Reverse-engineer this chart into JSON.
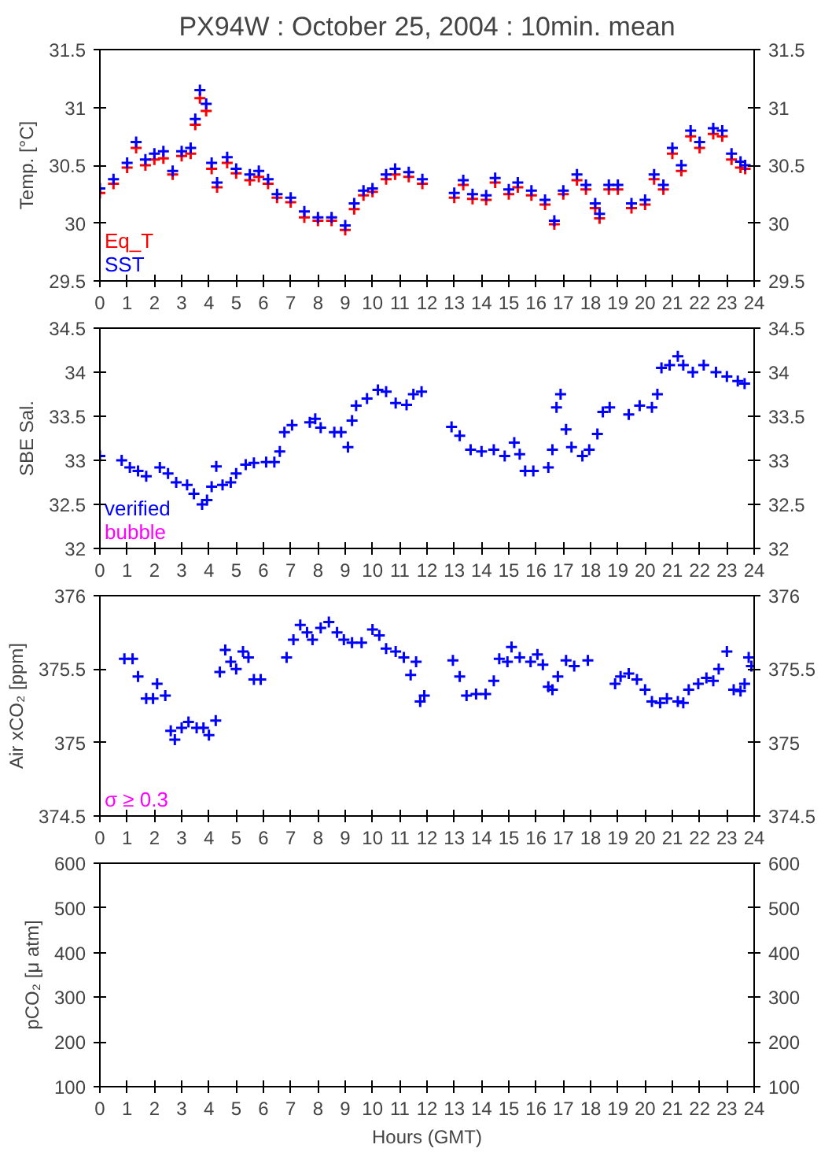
{
  "chart_data": [
    {
      "type": "scatter",
      "title": "PX94W : October 25, 2004 : 10min. mean",
      "ylabel": "Temp. [°C]",
      "marker": "cross",
      "grid": false,
      "y2lim": [
        29.5,
        31.5
      ],
      "y2ticks": [
        29.5,
        30,
        30.5,
        31,
        31.5
      ],
      "xlim": [
        0,
        24
      ],
      "xticks": [
        0,
        1,
        2,
        3,
        4,
        5,
        6,
        7,
        8,
        9,
        10,
        11,
        12,
        13,
        14,
        15,
        16,
        17,
        18,
        19,
        20,
        21,
        22,
        23,
        24
      ],
      "ylim": [
        29.5,
        31.5
      ],
      "yticks": [
        29.5,
        30,
        30.5,
        31,
        31.5
      ],
      "series": [
        {
          "name": "Eq_T",
          "color": "#ff0000",
          "x": [
            0,
            0.5,
            1,
            1.33,
            1.67,
            2,
            2.33,
            2.67,
            3,
            3.33,
            3.5,
            3.67,
            3.9,
            4.1,
            4.3,
            4.67,
            5,
            5.5,
            5.83,
            6.17,
            6.5,
            7,
            7.5,
            8,
            8.5,
            9,
            9.33,
            9.67,
            10,
            10.5,
            10.83,
            11.33,
            11.83,
            13,
            13.33,
            13.67,
            14.17,
            14.5,
            15,
            15.33,
            15.83,
            16.33,
            16.67,
            17,
            17.5,
            17.83,
            18.17,
            18.33,
            18.67,
            19,
            19.5,
            20,
            20.33,
            20.67,
            21,
            21.33,
            21.67,
            22,
            22.5,
            22.83,
            23.17,
            23.5,
            23.67
          ],
          "values": [
            30.26,
            30.34,
            30.48,
            30.65,
            30.5,
            30.55,
            30.56,
            30.42,
            30.58,
            30.6,
            30.85,
            31.08,
            30.97,
            30.47,
            30.31,
            30.52,
            30.43,
            30.37,
            30.4,
            30.34,
            30.22,
            30.18,
            30.05,
            30.02,
            30.02,
            29.94,
            30.12,
            30.24,
            30.27,
            30.38,
            30.42,
            30.4,
            30.34,
            30.22,
            30.33,
            30.21,
            30.2,
            30.35,
            30.25,
            30.31,
            30.24,
            30.16,
            29.99,
            30.25,
            30.37,
            30.29,
            30.13,
            30.04,
            30.29,
            30.29,
            30.13,
            30.16,
            30.38,
            30.29,
            30.6,
            30.45,
            30.75,
            30.65,
            30.77,
            30.75,
            30.55,
            30.48,
            30.47
          ]
        },
        {
          "name": "SST",
          "color": "#0000ff",
          "x": [
            0,
            0.5,
            1,
            1.33,
            1.67,
            2,
            2.33,
            2.67,
            3,
            3.33,
            3.5,
            3.67,
            3.9,
            4.1,
            4.3,
            4.67,
            5,
            5.5,
            5.83,
            6.17,
            6.5,
            7,
            7.5,
            8,
            8.5,
            9,
            9.33,
            9.67,
            10,
            10.5,
            10.83,
            11.33,
            11.83,
            13,
            13.33,
            13.67,
            14.17,
            14.5,
            15,
            15.33,
            15.83,
            16.33,
            16.67,
            17,
            17.5,
            17.83,
            18.17,
            18.33,
            18.67,
            19,
            19.5,
            20,
            20.33,
            20.67,
            21,
            21.33,
            21.67,
            22,
            22.5,
            22.83,
            23.17,
            23.5,
            23.67
          ],
          "values": [
            30.3,
            30.38,
            30.52,
            30.7,
            30.55,
            30.6,
            30.62,
            30.45,
            30.62,
            30.65,
            30.9,
            31.15,
            31.03,
            30.52,
            30.35,
            30.57,
            30.47,
            30.42,
            30.45,
            30.38,
            30.25,
            30.22,
            30.1,
            30.05,
            30.05,
            29.98,
            30.17,
            30.28,
            30.3,
            30.42,
            30.47,
            30.44,
            30.38,
            30.26,
            30.37,
            30.25,
            30.24,
            30.39,
            30.29,
            30.35,
            30.28,
            30.2,
            30.02,
            30.28,
            30.42,
            30.33,
            30.17,
            30.08,
            30.33,
            30.33,
            30.17,
            30.2,
            30.42,
            30.33,
            30.65,
            30.5,
            30.8,
            30.7,
            30.82,
            30.8,
            30.6,
            30.53,
            30.5
          ]
        }
      ]
    },
    {
      "type": "scatter",
      "ylabel": "SBE Sal.",
      "marker": "cross",
      "grid": false,
      "y2lim": [
        32,
        34.5
      ],
      "y2ticks": [
        32,
        32.5,
        33,
        33.5,
        34,
        34.5
      ],
      "xlim": [
        0,
        24
      ],
      "xticks": [
        0,
        1,
        2,
        3,
        4,
        5,
        6,
        7,
        8,
        9,
        10,
        11,
        12,
        13,
        14,
        15,
        16,
        17,
        18,
        19,
        20,
        21,
        22,
        23,
        24
      ],
      "ylim": [
        32,
        34.5
      ],
      "yticks": [
        32,
        32.5,
        33,
        33.5,
        34,
        34.5
      ],
      "series": [
        {
          "name": "verified",
          "color": "#0000ff",
          "x": [
            0,
            0.8,
            1.1,
            1.4,
            1.7,
            2.2,
            2.5,
            2.8,
            3.2,
            3.45,
            3.75,
            3.93,
            4.1,
            4.27,
            4.5,
            4.8,
            5.0,
            5.35,
            5.65,
            6.1,
            6.4,
            6.6,
            6.77,
            7.05,
            7.7,
            7.9,
            8.1,
            8.6,
            8.85,
            9.1,
            9.25,
            9.4,
            9.8,
            10.2,
            10.5,
            10.85,
            11.25,
            11.5,
            11.8,
            12.9,
            13.2,
            13.6,
            14.0,
            14.45,
            14.85,
            15.2,
            15.4,
            15.6,
            15.9,
            16.45,
            16.6,
            16.75,
            16.9,
            17.1,
            17.3,
            17.7,
            17.95,
            18.25,
            18.45,
            18.7,
            19.4,
            19.8,
            20.25,
            20.45,
            20.6,
            20.9,
            21.2,
            21.4,
            21.75,
            22.15,
            22.6,
            23.0,
            23.4,
            23.65
          ],
          "values": [
            33.05,
            33.0,
            32.92,
            32.88,
            32.82,
            32.92,
            32.85,
            32.75,
            32.72,
            32.62,
            32.5,
            32.55,
            32.7,
            32.93,
            32.72,
            32.75,
            32.85,
            32.95,
            32.97,
            32.98,
            32.98,
            33.1,
            33.32,
            33.4,
            33.43,
            33.47,
            33.37,
            33.32,
            33.32,
            33.15,
            33.45,
            33.62,
            33.7,
            33.8,
            33.78,
            33.65,
            33.63,
            33.75,
            33.78,
            33.38,
            33.28,
            33.12,
            33.1,
            33.12,
            33.05,
            33.2,
            33.07,
            32.88,
            32.88,
            32.92,
            33.12,
            33.6,
            33.75,
            33.35,
            33.15,
            33.05,
            33.12,
            33.3,
            33.55,
            33.6,
            33.52,
            33.62,
            33.6,
            33.75,
            34.05,
            34.08,
            34.18,
            34.08,
            34.0,
            34.08,
            34.0,
            33.95,
            33.9,
            33.87
          ]
        },
        {
          "name": "bubble",
          "color": "#ff00ff"
        }
      ]
    },
    {
      "type": "scatter",
      "ylabel": "Air xCO₂ [ppm]",
      "marker": "cross",
      "grid": false,
      "y2lim": [
        374.5,
        376
      ],
      "y2ticks": [
        374.5,
        375,
        375.5,
        376
      ],
      "xlim": [
        0,
        24
      ],
      "xticks": [
        0,
        1,
        2,
        3,
        4,
        5,
        6,
        7,
        8,
        9,
        10,
        11,
        12,
        13,
        14,
        15,
        16,
        17,
        18,
        19,
        20,
        21,
        22,
        23,
        24
      ],
      "ylim": [
        374.5,
        376
      ],
      "yticks": [
        374.5,
        375,
        375.5,
        376
      ],
      "series": [
        {
          "color": "#0000ff",
          "x": [
            0.9,
            1.2,
            1.4,
            1.7,
            1.95,
            2.1,
            2.4,
            2.6,
            2.75,
            3.0,
            3.25,
            3.55,
            3.8,
            4.0,
            4.25,
            4.4,
            4.6,
            4.8,
            5.0,
            5.25,
            5.45,
            5.65,
            5.9,
            6.85,
            7.1,
            7.35,
            7.6,
            7.8,
            8.1,
            8.4,
            8.7,
            8.95,
            9.25,
            9.6,
            10.0,
            10.25,
            10.5,
            10.85,
            11.15,
            11.4,
            11.6,
            11.75,
            11.9,
            12.95,
            13.2,
            13.45,
            13.8,
            14.15,
            14.45,
            14.65,
            14.95,
            15.1,
            15.4,
            15.8,
            16.05,
            16.25,
            16.45,
            16.6,
            16.8,
            17.1,
            17.4,
            17.9,
            18.9,
            19.1,
            19.4,
            19.7,
            20.0,
            20.25,
            20.55,
            20.8,
            21.2,
            21.4,
            21.6,
            21.95,
            22.25,
            22.5,
            22.7,
            23.0,
            23.25,
            23.5,
            23.65,
            23.8,
            23.9
          ],
          "values": [
            375.57,
            375.57,
            375.45,
            375.3,
            375.3,
            375.4,
            375.32,
            375.08,
            375.02,
            375.1,
            375.14,
            375.1,
            375.1,
            375.05,
            375.15,
            375.48,
            375.63,
            375.55,
            375.5,
            375.62,
            375.58,
            375.43,
            375.43,
            375.58,
            375.7,
            375.8,
            375.75,
            375.7,
            375.78,
            375.82,
            375.75,
            375.7,
            375.68,
            375.68,
            375.77,
            375.73,
            375.64,
            375.62,
            375.58,
            375.46,
            375.55,
            375.28,
            375.32,
            375.56,
            375.45,
            375.32,
            375.33,
            375.33,
            375.42,
            375.57,
            375.55,
            375.65,
            375.58,
            375.55,
            375.6,
            375.53,
            375.38,
            375.36,
            375.45,
            375.56,
            375.52,
            375.56,
            375.4,
            375.45,
            375.47,
            375.43,
            375.36,
            375.28,
            375.27,
            375.3,
            375.28,
            375.27,
            375.36,
            375.4,
            375.44,
            375.42,
            375.5,
            375.62,
            375.36,
            375.35,
            375.4,
            375.58,
            375.52
          ]
        },
        {
          "name": "σ ≥ 0.3",
          "color": "#ff00ff"
        }
      ]
    },
    {
      "type": "scatter",
      "ylabel": "pCO₂ [μ atm]",
      "xlabel": "Hours (GMT)",
      "grid": false,
      "xlim": [
        0,
        24
      ],
      "xticks": [
        0,
        1,
        2,
        3,
        4,
        5,
        6,
        7,
        8,
        9,
        10,
        11,
        12,
        13,
        14,
        15,
        16,
        17,
        18,
        19,
        20,
        21,
        22,
        23,
        24
      ],
      "ylim": [
        100,
        600
      ],
      "yticks": [
        100,
        200,
        300,
        400,
        500,
        600
      ],
      "y2lim": [
        100,
        600
      ],
      "y2ticks": [
        100,
        200,
        300,
        400,
        500,
        600
      ]
    }
  ]
}
